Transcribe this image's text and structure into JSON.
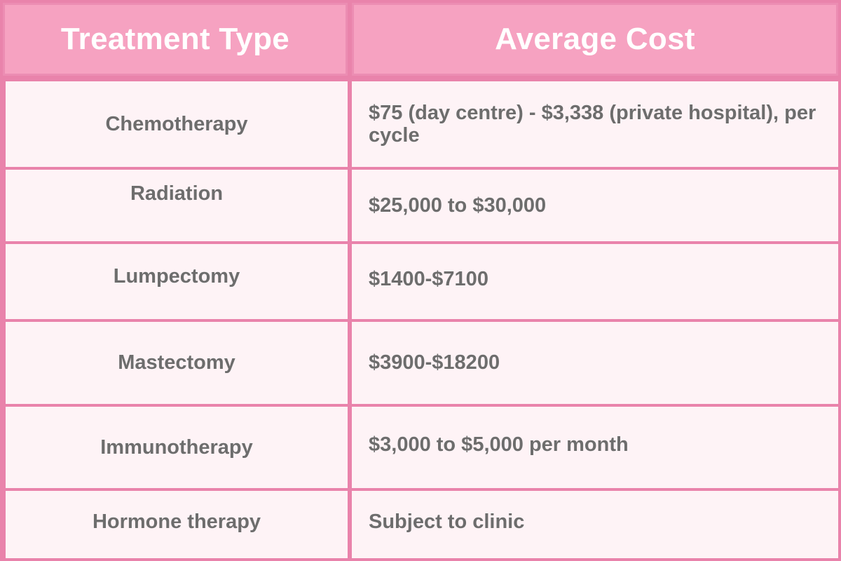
{
  "table": {
    "headers": {
      "treatment": "Treatment Type",
      "cost": "Average Cost"
    },
    "rows": [
      {
        "treatment": "Chemotherapy",
        "cost": "$75 (day centre) - $3,338 (private hospital), per cycle"
      },
      {
        "treatment": "Radiation",
        "cost": "$25,000 to $30,000"
      },
      {
        "treatment": "Lumpectomy",
        "cost": "$1400-$7100"
      },
      {
        "treatment": "Mastectomy",
        "cost": "$3900-$18200"
      },
      {
        "treatment": "Immunotherapy",
        "cost": "$3,000 to $5,000 per month"
      },
      {
        "treatment": "Hormone therapy",
        "cost": "Subject to clinic"
      }
    ]
  },
  "colors": {
    "header_bg": "#f6a2c1",
    "grid_lines": "#e983ab",
    "cell_bg": "#fef3f6",
    "header_text": "#ffffff",
    "body_text": "#6d6d6d"
  }
}
